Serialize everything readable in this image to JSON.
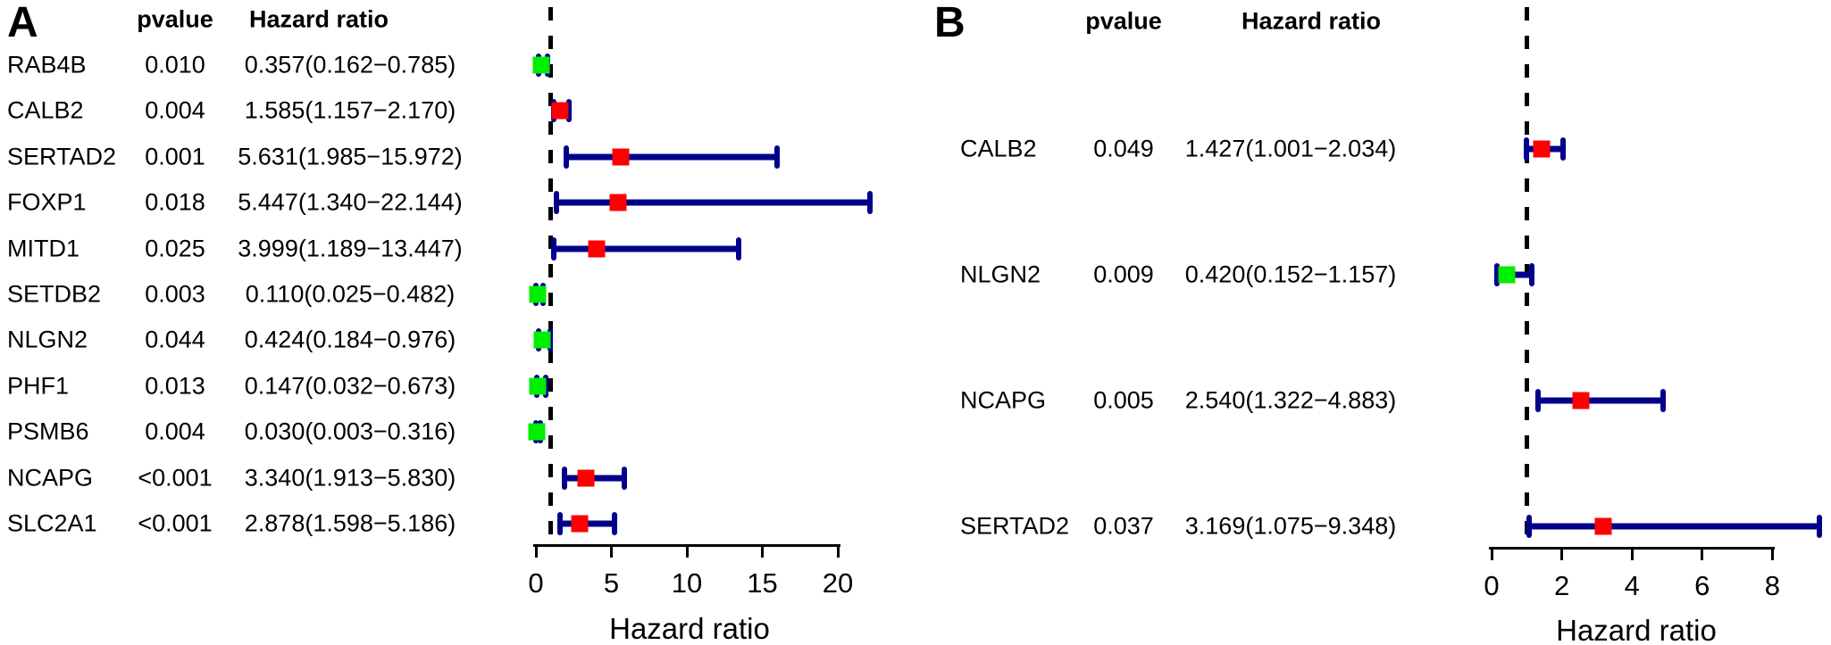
{
  "figure": {
    "background": "#ffffff",
    "colors": {
      "risk_marker": "#ff0000",
      "protective_marker": "#00ee00",
      "whisker": "#00008b",
      "reference_line": "#000000",
      "axis": "#000000"
    }
  },
  "chart_data": [
    {
      "type": "forest",
      "panel_label": "A",
      "col_headers": {
        "pvalue": "pvalue",
        "hazard_ratio": "Hazard ratio"
      },
      "xlabel": "Hazard ratio",
      "x_ticks": [
        0,
        5,
        10,
        15,
        20
      ],
      "xlim": [
        0,
        22.5
      ],
      "reference_line_x": 1,
      "rows": [
        {
          "gene": "RAB4B",
          "pvalue": "0.010",
          "hr_text": "0.357(0.162−0.785)",
          "hr": 0.357,
          "ci_low": 0.162,
          "ci_high": 0.785,
          "direction": "protective"
        },
        {
          "gene": "CALB2",
          "pvalue": "0.004",
          "hr_text": "1.585(1.157−2.170)",
          "hr": 1.585,
          "ci_low": 1.157,
          "ci_high": 2.17,
          "direction": "risk"
        },
        {
          "gene": "SERTAD2",
          "pvalue": "0.001",
          "hr_text": "5.631(1.985−15.972)",
          "hr": 5.631,
          "ci_low": 1.985,
          "ci_high": 15.972,
          "direction": "risk"
        },
        {
          "gene": "FOXP1",
          "pvalue": "0.018",
          "hr_text": "5.447(1.340−22.144)",
          "hr": 5.447,
          "ci_low": 1.34,
          "ci_high": 22.144,
          "direction": "risk"
        },
        {
          "gene": "MITD1",
          "pvalue": "0.025",
          "hr_text": "3.999(1.189−13.447)",
          "hr": 3.999,
          "ci_low": 1.189,
          "ci_high": 13.447,
          "direction": "risk"
        },
        {
          "gene": "SETDB2",
          "pvalue": "0.003",
          "hr_text": "0.110(0.025−0.482)",
          "hr": 0.11,
          "ci_low": 0.025,
          "ci_high": 0.482,
          "direction": "protective"
        },
        {
          "gene": "NLGN2",
          "pvalue": "0.044",
          "hr_text": "0.424(0.184−0.976)",
          "hr": 0.424,
          "ci_low": 0.184,
          "ci_high": 0.976,
          "direction": "protective"
        },
        {
          "gene": "PHF1",
          "pvalue": "0.013",
          "hr_text": "0.147(0.032−0.673)",
          "hr": 0.147,
          "ci_low": 0.032,
          "ci_high": 0.673,
          "direction": "protective"
        },
        {
          "gene": "PSMB6",
          "pvalue": "0.004",
          "hr_text": "0.030(0.003−0.316)",
          "hr": 0.03,
          "ci_low": 0.003,
          "ci_high": 0.316,
          "direction": "protective"
        },
        {
          "gene": "NCAPG",
          "pvalue": "<0.001",
          "hr_text": "3.340(1.913−5.830)",
          "hr": 3.34,
          "ci_low": 1.913,
          "ci_high": 5.83,
          "direction": "risk"
        },
        {
          "gene": "SLC2A1",
          "pvalue": "<0.001",
          "hr_text": "2.878(1.598−5.186)",
          "hr": 2.878,
          "ci_low": 1.598,
          "ci_high": 5.186,
          "direction": "risk"
        }
      ]
    },
    {
      "type": "forest",
      "panel_label": "B",
      "col_headers": {
        "pvalue": "pvalue",
        "hazard_ratio": "Hazard ratio"
      },
      "xlabel": "Hazard ratio",
      "x_ticks": [
        0,
        2,
        4,
        6,
        8
      ],
      "xlim": [
        0,
        9.6
      ],
      "reference_line_x": 1,
      "rows": [
        {
          "gene": "CALB2",
          "pvalue": "0.049",
          "hr_text": "1.427(1.001−2.034)",
          "hr": 1.427,
          "ci_low": 1.001,
          "ci_high": 2.034,
          "direction": "risk"
        },
        {
          "gene": "NLGN2",
          "pvalue": "0.009",
          "hr_text": "0.420(0.152−1.157)",
          "hr": 0.42,
          "ci_low": 0.152,
          "ci_high": 1.157,
          "direction": "protective"
        },
        {
          "gene": "NCAPG",
          "pvalue": "0.005",
          "hr_text": "2.540(1.322−4.883)",
          "hr": 2.54,
          "ci_low": 1.322,
          "ci_high": 4.883,
          "direction": "risk"
        },
        {
          "gene": "SERTAD2",
          "pvalue": "0.037",
          "hr_text": "3.169(1.075−9.348)",
          "hr": 3.169,
          "ci_low": 1.075,
          "ci_high": 9.348,
          "direction": "risk"
        }
      ]
    }
  ]
}
